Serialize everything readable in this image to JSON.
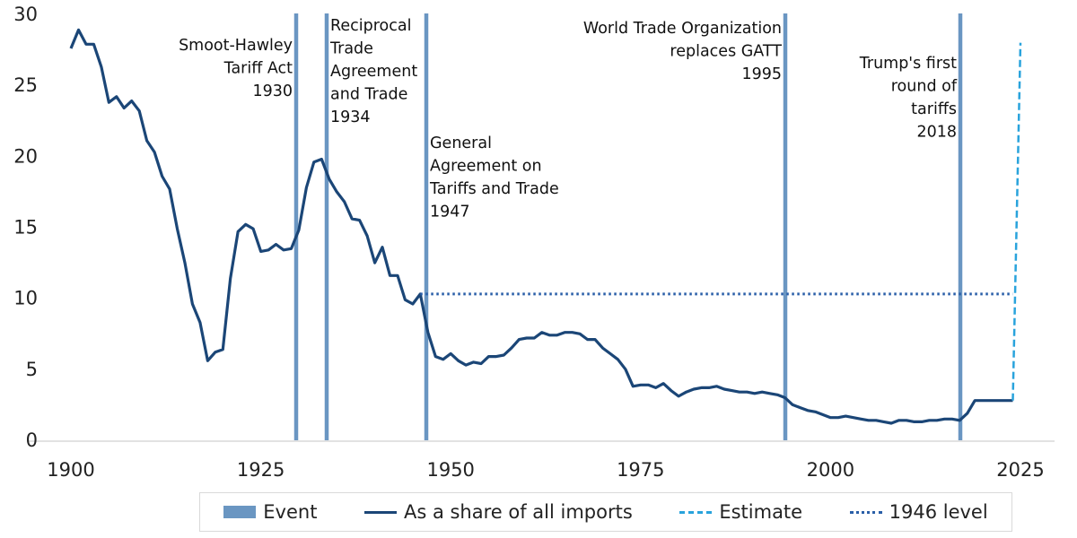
{
  "chart_data": {
    "type": "line",
    "xlim": [
      1900,
      2025
    ],
    "ylim": [
      0,
      30
    ],
    "x_ticks": [
      "1900",
      "1925",
      "1950",
      "1975",
      "2000",
      "2025"
    ],
    "y_ticks": [
      "0",
      "5",
      "10",
      "15",
      "20",
      "25",
      "30"
    ],
    "grid": false,
    "legend_placement": "bottom",
    "colors": {
      "event": "#6a96c2",
      "share": "#1b4677",
      "estimate": "#29a3dc",
      "level1946": "#2a5fa8"
    },
    "series": [
      {
        "name": "As a share of all imports",
        "style": "solid",
        "x": [
          1900,
          1901,
          1902,
          1903,
          1904,
          1905,
          1906,
          1907,
          1908,
          1909,
          1910,
          1911,
          1912,
          1913,
          1914,
          1915,
          1916,
          1917,
          1918,
          1919,
          1920,
          1921,
          1922,
          1923,
          1924,
          1925,
          1926,
          1927,
          1928,
          1929,
          1930,
          1931,
          1932,
          1933,
          1934,
          1935,
          1936,
          1937,
          1938,
          1939,
          1940,
          1941,
          1942,
          1943,
          1944,
          1945,
          1946,
          1947,
          1948,
          1949,
          1950,
          1951,
          1952,
          1953,
          1954,
          1955,
          1956,
          1957,
          1958,
          1959,
          1960,
          1961,
          1962,
          1963,
          1964,
          1965,
          1966,
          1967,
          1968,
          1969,
          1970,
          1971,
          1972,
          1973,
          1974,
          1975,
          1976,
          1977,
          1978,
          1979,
          1980,
          1981,
          1982,
          1983,
          1984,
          1985,
          1986,
          1987,
          1988,
          1989,
          1990,
          1991,
          1992,
          1993,
          1994,
          1995,
          1996,
          1997,
          1998,
          1999,
          2000,
          2001,
          2002,
          2003,
          2004,
          2005,
          2006,
          2007,
          2008,
          2009,
          2010,
          2011,
          2012,
          2013,
          2014,
          2015,
          2016,
          2017,
          2018,
          2019,
          2020,
          2021,
          2022,
          2023,
          2024
        ],
        "y": [
          27.6,
          28.9,
          27.9,
          27.9,
          26.3,
          23.8,
          24.2,
          23.4,
          23.9,
          23.2,
          21.1,
          20.3,
          18.6,
          17.7,
          14.9,
          12.5,
          9.6,
          8.3,
          5.6,
          6.2,
          6.4,
          11.4,
          14.7,
          15.2,
          14.9,
          13.3,
          13.4,
          13.8,
          13.4,
          13.5,
          14.8,
          17.8,
          19.6,
          19.8,
          18.4,
          17.5,
          16.8,
          15.6,
          15.5,
          14.4,
          12.5,
          13.6,
          11.6,
          11.6,
          9.9,
          9.6,
          10.3,
          7.6,
          5.9,
          5.7,
          6.1,
          5.6,
          5.3,
          5.5,
          5.4,
          5.9,
          5.9,
          6.0,
          6.5,
          7.1,
          7.2,
          7.2,
          7.6,
          7.4,
          7.4,
          7.6,
          7.6,
          7.5,
          7.1,
          7.1,
          6.5,
          6.1,
          5.7,
          5.0,
          3.8,
          3.9,
          3.9,
          3.7,
          4.0,
          3.5,
          3.1,
          3.4,
          3.6,
          3.7,
          3.7,
          3.8,
          3.6,
          3.5,
          3.4,
          3.4,
          3.3,
          3.4,
          3.3,
          3.2,
          3.0,
          2.5,
          2.3,
          2.1,
          2.0,
          1.8,
          1.6,
          1.6,
          1.7,
          1.6,
          1.5,
          1.4,
          1.4,
          1.3,
          1.2,
          1.4,
          1.4,
          1.3,
          1.3,
          1.4,
          1.4,
          1.5,
          1.5,
          1.4,
          1.9,
          2.8,
          2.8,
          2.8,
          2.8,
          2.8,
          2.8
        ]
      },
      {
        "name": "Estimate",
        "style": "dashed",
        "x": [
          2024,
          2025
        ],
        "y": [
          2.8,
          28
        ]
      },
      {
        "name": "1946 level",
        "style": "dotted",
        "x": [
          1946,
          2024
        ],
        "y": [
          10.3,
          10.3
        ]
      }
    ],
    "events": [
      {
        "year": 1930,
        "label": [
          "Smoot-Hawley",
          "Tariff Act",
          "1930"
        ],
        "align": "left"
      },
      {
        "year": 1934,
        "label": [
          "Reciprocal",
          "Trade",
          "Agreement",
          "and Trade",
          "1934"
        ],
        "align": "right"
      },
      {
        "year": 1947,
        "label": [
          "General",
          "Agreement on",
          "Tariffs and Trade",
          "1947"
        ],
        "align": "right"
      },
      {
        "year": 1995,
        "label": [
          "World Trade Organization",
          "replaces GATT",
          "1995"
        ],
        "align": "left"
      },
      {
        "year": 2018,
        "label": [
          "Trump's first",
          "round of",
          "tariffs",
          "2018"
        ],
        "align": "left"
      }
    ],
    "legend": [
      "Event",
      "As a share of all imports",
      "Estimate",
      "1946 level"
    ]
  }
}
